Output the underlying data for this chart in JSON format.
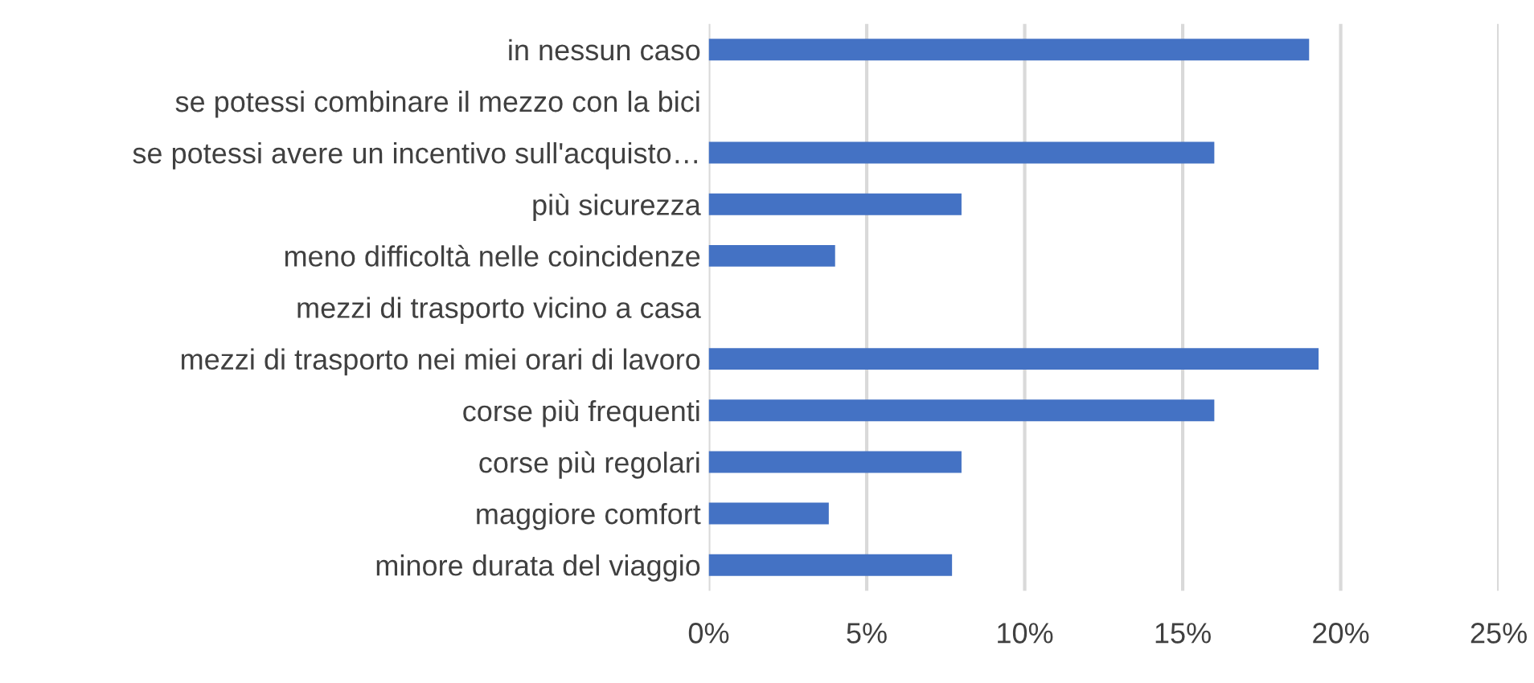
{
  "chart_data": {
    "type": "bar",
    "orientation": "horizontal",
    "categories": [
      "in nessun caso",
      "se potessi combinare il mezzo con la bici",
      "se potessi avere un incentivo sull'acquisto…",
      "più sicurezza",
      "meno difficoltà nelle coincidenze",
      "mezzi di trasporto vicino a casa",
      "mezzi di trasporto nei miei orari di lavoro",
      "corse più frequenti",
      "corse più regolari",
      "maggiore comfort",
      "minore durata del viaggio"
    ],
    "values": [
      19.0,
      0,
      16.0,
      8.0,
      4.0,
      0,
      19.3,
      16.0,
      8.0,
      3.8,
      7.7
    ],
    "color": "#4472c4",
    "xlim": [
      0,
      25
    ],
    "xticks": [
      {
        "value": 0,
        "label": "0%"
      },
      {
        "value": 5,
        "label": "5%"
      },
      {
        "value": 10,
        "label": "10%"
      },
      {
        "value": 15,
        "label": "15%"
      },
      {
        "value": 20,
        "label": "20%"
      },
      {
        "value": 25,
        "label": "25%"
      }
    ],
    "grid": "x"
  }
}
